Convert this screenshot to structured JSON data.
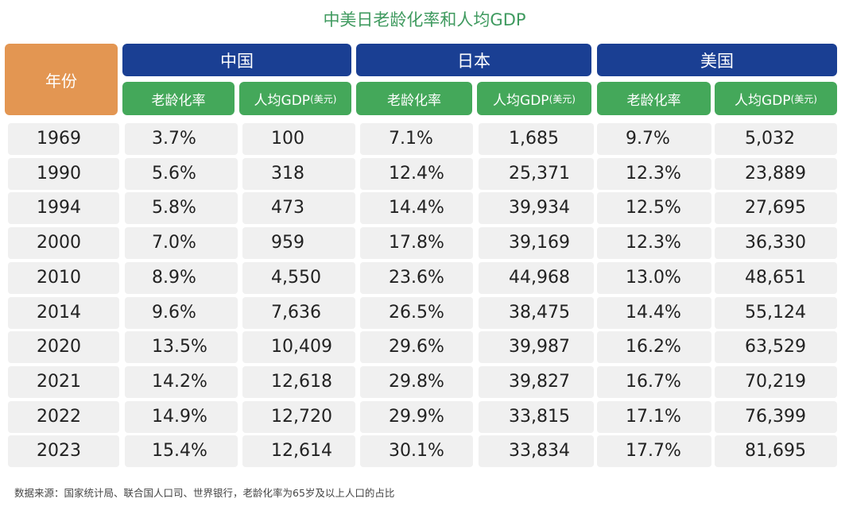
{
  "title": "中美日老龄化率和人均GDP",
  "header": {
    "year": "年份",
    "countries": [
      "中国",
      "日本",
      "美国"
    ],
    "sub_rate": "老龄化率",
    "sub_gdp": "人均GDP",
    "sub_gdp_unit": "(美元)"
  },
  "rows": [
    {
      "year": "1969",
      "cn_rate": "3.7%",
      "cn_gdp": "100",
      "jp_rate": "7.1%",
      "jp_gdp": "1,685",
      "us_rate": "9.7%",
      "us_gdp": "5,032"
    },
    {
      "year": "1990",
      "cn_rate": "5.6%",
      "cn_gdp": "318",
      "jp_rate": "12.4%",
      "jp_gdp": "25,371",
      "us_rate": "12.3%",
      "us_gdp": "23,889"
    },
    {
      "year": "1994",
      "cn_rate": "5.8%",
      "cn_gdp": "473",
      "jp_rate": "14.4%",
      "jp_gdp": "39,934",
      "us_rate": "12.5%",
      "us_gdp": "27,695"
    },
    {
      "year": "2000",
      "cn_rate": "7.0%",
      "cn_gdp": "959",
      "jp_rate": "17.8%",
      "jp_gdp": "39,169",
      "us_rate": "12.3%",
      "us_gdp": "36,330"
    },
    {
      "year": "2010",
      "cn_rate": "8.9%",
      "cn_gdp": "4,550",
      "jp_rate": "23.6%",
      "jp_gdp": "44,968",
      "us_rate": "13.0%",
      "us_gdp": "48,651"
    },
    {
      "year": "2014",
      "cn_rate": "9.6%",
      "cn_gdp": "7,636",
      "jp_rate": "26.5%",
      "jp_gdp": "38,475",
      "us_rate": "14.4%",
      "us_gdp": "55,124"
    },
    {
      "year": "2020",
      "cn_rate": "13.5%",
      "cn_gdp": "10,409",
      "jp_rate": "29.6%",
      "jp_gdp": "39,987",
      "us_rate": "16.2%",
      "us_gdp": "63,529"
    },
    {
      "year": "2021",
      "cn_rate": "14.2%",
      "cn_gdp": "12,618",
      "jp_rate": "29.8%",
      "jp_gdp": "39,827",
      "us_rate": "16.7%",
      "us_gdp": "70,219"
    },
    {
      "year": "2022",
      "cn_rate": "14.9%",
      "cn_gdp": "12,720",
      "jp_rate": "29.9%",
      "jp_gdp": "33,815",
      "us_rate": "17.1%",
      "us_gdp": "76,399"
    },
    {
      "year": "2023",
      "cn_rate": "15.4%",
      "cn_gdp": "12,614",
      "jp_rate": "30.1%",
      "jp_gdp": "33,834",
      "us_rate": "17.7%",
      "us_gdp": "81,695"
    }
  ],
  "source": "数据来源：国家统计局、联合国人口司、世界银行，老龄化率为65岁及以上人口的占比"
}
